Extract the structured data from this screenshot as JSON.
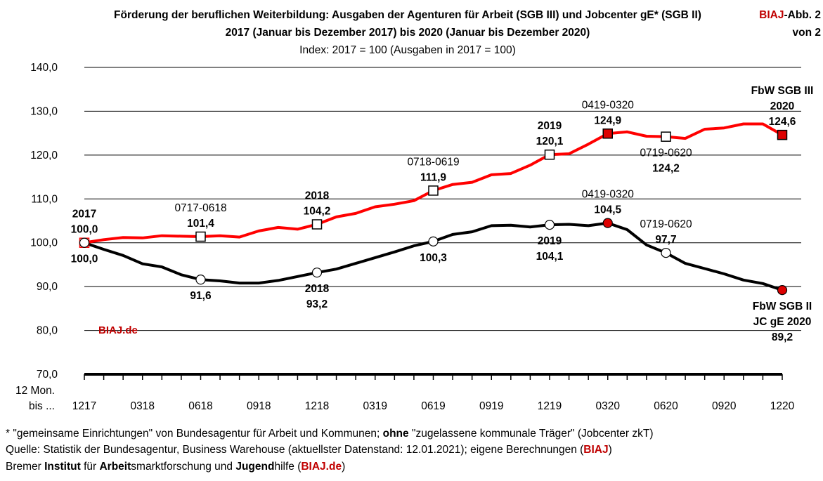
{
  "header": {
    "title_line1": "Förderung der beruflichen Weiterbildung: Ausgaben der Agenturen für Arbeit (SGB III) und Jobcenter gE* (SGB II)",
    "title_line2": "2017 (Januar bis Dezember 2017) bis 2020 (Januar bis Dezember 2020)",
    "subtitle": "Index: 2017 = 100  (Ausgaben in 2017 = 100)",
    "badge_brand": "BIAJ",
    "badge_rest": "-Abb. 2",
    "badge_line2": "von 2"
  },
  "watermark": "BIAJ.de",
  "colors": {
    "sgb3": "#ff0000",
    "sgb2": "#000000",
    "brand": "#c00000",
    "marker_red": "#dd0000"
  },
  "chart_data": {
    "type": "line",
    "ylim": [
      70,
      140
    ],
    "yticks": [
      "140,0",
      "130,0",
      "120,0",
      "110,0",
      "100,0",
      "90,0",
      "80,0",
      "70,0"
    ],
    "ytick_values": [
      140,
      130,
      120,
      110,
      100,
      90,
      80,
      70
    ],
    "xaxis_caption": [
      "12 Mon.",
      "bis ..."
    ],
    "xtick_labels": [
      "1217",
      "0318",
      "0618",
      "0918",
      "1218",
      "0319",
      "0619",
      "0919",
      "1219",
      "0320",
      "0620",
      "0920",
      "1220"
    ],
    "xtick_indices": [
      0,
      3,
      6,
      9,
      12,
      15,
      18,
      21,
      24,
      27,
      30,
      33,
      36
    ],
    "grid": "horizontal",
    "series": [
      {
        "name": "FbW SGB III 2020",
        "values": [
          100.0,
          100.7,
          101.2,
          101.1,
          101.6,
          101.5,
          101.4,
          101.6,
          101.3,
          102.7,
          103.5,
          103.1,
          104.2,
          105.9,
          106.7,
          108.2,
          108.8,
          109.6,
          111.9,
          113.3,
          113.8,
          115.5,
          115.8,
          117.7,
          120.1,
          120.3,
          122.5,
          124.9,
          125.3,
          124.3,
          124.2,
          123.8,
          125.9,
          126.2,
          127.1,
          127.1,
          124.6
        ]
      },
      {
        "name": "FbW SGB II JC gE 2020",
        "values": [
          100.0,
          98.5,
          97.1,
          95.2,
          94.5,
          92.7,
          91.6,
          91.3,
          90.8,
          90.8,
          91.4,
          92.3,
          93.2,
          94.0,
          95.3,
          96.6,
          97.9,
          99.3,
          100.3,
          101.9,
          102.5,
          103.9,
          104.0,
          103.6,
          104.1,
          104.2,
          103.9,
          104.5,
          103.0,
          99.5,
          97.7,
          95.3,
          94.1,
          92.9,
          91.5,
          90.7,
          89.2
        ]
      }
    ],
    "markers": [
      {
        "series": 0,
        "index": 0,
        "style": "open-red"
      },
      {
        "series": 0,
        "index": 6,
        "style": "open"
      },
      {
        "series": 0,
        "index": 12,
        "style": "open"
      },
      {
        "series": 0,
        "index": 18,
        "style": "open"
      },
      {
        "series": 0,
        "index": 24,
        "style": "open"
      },
      {
        "series": 0,
        "index": 27,
        "style": "filled-red"
      },
      {
        "series": 0,
        "index": 30,
        "style": "open"
      },
      {
        "series": 0,
        "index": 36,
        "style": "filled-red"
      },
      {
        "series": 1,
        "index": 0,
        "style": "open"
      },
      {
        "series": 1,
        "index": 6,
        "style": "open"
      },
      {
        "series": 1,
        "index": 12,
        "style": "open"
      },
      {
        "series": 1,
        "index": 18,
        "style": "open"
      },
      {
        "series": 1,
        "index": 24,
        "style": "open"
      },
      {
        "series": 1,
        "index": 27,
        "style": "filled-red"
      },
      {
        "series": 1,
        "index": 30,
        "style": "open"
      },
      {
        "series": 1,
        "index": 36,
        "style": "filled-red"
      }
    ],
    "annotations": [
      {
        "index": 0,
        "value": 100.0,
        "pos": "above",
        "lines": [
          "2017",
          "100,0"
        ],
        "bold": [
          true,
          true
        ]
      },
      {
        "index": 0,
        "value": 100.0,
        "pos": "below",
        "lines": [
          "100,0"
        ],
        "bold": [
          true
        ]
      },
      {
        "index": 6,
        "value": 101.4,
        "pos": "above",
        "lines": [
          "0717-0618",
          "101,4"
        ],
        "bold": [
          false,
          true
        ]
      },
      {
        "index": 6,
        "value": 91.6,
        "pos": "below",
        "lines": [
          "91,6"
        ],
        "bold": [
          true
        ]
      },
      {
        "index": 12,
        "value": 104.2,
        "pos": "above",
        "lines": [
          "2018",
          "104,2"
        ],
        "bold": [
          true,
          true
        ]
      },
      {
        "index": 12,
        "value": 93.2,
        "pos": "below",
        "lines": [
          "2018",
          "93,2"
        ],
        "bold": [
          true,
          true
        ]
      },
      {
        "index": 18,
        "value": 111.9,
        "pos": "above",
        "lines": [
          "0718-0619",
          "111,9"
        ],
        "bold": [
          false,
          true
        ]
      },
      {
        "index": 18,
        "value": 100.3,
        "pos": "below",
        "lines": [
          "100,3"
        ],
        "bold": [
          true
        ]
      },
      {
        "index": 24,
        "value": 120.1,
        "pos": "above",
        "lines": [
          "2019",
          "120,1"
        ],
        "bold": [
          true,
          true
        ]
      },
      {
        "index": 24,
        "value": 104.1,
        "pos": "below",
        "lines": [
          "2019",
          "104,1"
        ],
        "bold": [
          true,
          true
        ]
      },
      {
        "index": 27,
        "value": 124.9,
        "pos": "above",
        "lines": [
          "0419-0320",
          "124,9"
        ],
        "bold": [
          false,
          true
        ]
      },
      {
        "index": 27,
        "value": 104.5,
        "pos": "above",
        "lines": [
          "0419-0320",
          "104,5"
        ],
        "bold": [
          false,
          true
        ]
      },
      {
        "index": 30,
        "value": 124.2,
        "pos": "below",
        "lines": [
          "0719-0620",
          "124,2"
        ],
        "bold": [
          false,
          true
        ]
      },
      {
        "index": 30,
        "value": 97.7,
        "pos": "above",
        "lines": [
          "0719-0620",
          "97,7"
        ],
        "bold": [
          false,
          true
        ]
      },
      {
        "index": 36,
        "value": 124.6,
        "pos": "above",
        "lines": [
          "FbW SGB III",
          "2020",
          "124,6"
        ],
        "bold": [
          true,
          true,
          true
        ]
      },
      {
        "index": 36,
        "value": 89.2,
        "pos": "below",
        "lines": [
          "FbW SGB II",
          "JC gE 2020",
          "89,2"
        ],
        "bold": [
          true,
          true,
          true
        ]
      }
    ]
  },
  "footer": {
    "line1_a": "* \"gemeinsame Einrichtungen\" von Bundesagentur für Arbeit und Kommunen; ",
    "line1_b": "ohne",
    "line1_c": " \"zugelassene kommunale Träger\" (Jobcenter zkT)",
    "line2_a": "Quelle: Statistik der Bundesagentur, Business Warehouse (aktuellster Datenstand: 12.01.2021); eigene Berechnungen (",
    "line2_b": "BIAJ",
    "line2_c": ")",
    "line3_a": "Bremer ",
    "line3_b": "Institut",
    "line3_c": " für ",
    "line3_d": "Arbeit",
    "line3_e": "smarktforschung und ",
    "line3_f": "Jugend",
    "line3_g": "hilfe (",
    "line3_h": "BIAJ.de",
    "line3_i": ")"
  }
}
